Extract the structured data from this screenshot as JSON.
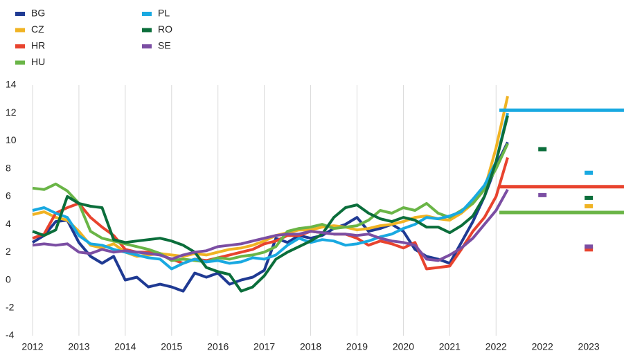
{
  "chart_data": {
    "type": "line",
    "x": [
      2012,
      2012.25,
      2012.5,
      2012.75,
      2013,
      2013.25,
      2013.5,
      2013.75,
      2014,
      2014.25,
      2014.5,
      2014.75,
      2015,
      2015.25,
      2015.5,
      2015.75,
      2016,
      2016.25,
      2016.5,
      2016.75,
      2017,
      2017.25,
      2017.5,
      2017.75,
      2018,
      2018.25,
      2018.5,
      2018.75,
      2019,
      2019.25,
      2019.5,
      2019.75,
      2020,
      2020.25,
      2020.5,
      2020.75,
      2021,
      2021.25,
      2021.5,
      2021.75,
      2022,
      2022.25
    ],
    "xlim": [
      2012,
      2024.76
    ],
    "xticks": [
      2012,
      2013,
      2014,
      2015,
      2016,
      2017,
      2018,
      2019,
      2020,
      2021,
      2022,
      {
        "value": 2023,
        "label": "2022"
      },
      {
        "value": 2024,
        "label": "2023"
      }
    ],
    "ylim": [
      -4,
      14
    ],
    "yticks": [
      -4,
      -2,
      0,
      2,
      4,
      6,
      8,
      10,
      12,
      14
    ],
    "grid": true,
    "legend": "top-left",
    "forecast_x": [
      2023,
      2024
    ],
    "series": [
      {
        "name": "BG",
        "color": "#1f3a93",
        "values": [
          2.7,
          3.2,
          4.2,
          4.3,
          2.7,
          1.7,
          1.2,
          1.7,
          0,
          0.2,
          -0.5,
          -0.3,
          -0.5,
          -0.8,
          0.5,
          0.2,
          0.5,
          -0.3,
          0,
          0.2,
          0.7,
          3,
          2.7,
          3.2,
          3,
          3.2,
          3.7,
          4,
          4.5,
          3.5,
          3.7,
          4,
          3.5,
          2.2,
          1.7,
          1.5,
          1.2,
          2.7,
          4.2,
          6,
          8.2,
          9.9
        ]
      },
      {
        "name": "CZ",
        "color": "#f0b323",
        "values": [
          4.7,
          4.9,
          4.5,
          4.3,
          3.5,
          2.5,
          2.3,
          2.6,
          2.0,
          1.7,
          1.8,
          1.9,
          1.8,
          1.7,
          1.9,
          1.8,
          2.0,
          2.2,
          2.3,
          2.5,
          2.8,
          3.2,
          3.4,
          3.6,
          3.6,
          3.8,
          3.9,
          3.8,
          3.6,
          3.7,
          3.9,
          4.0,
          4.2,
          4.5,
          4.6,
          4.4,
          4.3,
          4.8,
          5.5,
          6.5,
          9.5,
          13.2
        ],
        "forecast": [
          null,
          5.3
        ]
      },
      {
        "name": "HR",
        "color": "#e8432e",
        "values": [
          3.0,
          3.3,
          4.8,
          5.2,
          5.5,
          4.5,
          3.8,
          3.2,
          2.2,
          2.0,
          2.0,
          1.8,
          1.5,
          1.2,
          1.5,
          1.4,
          1.6,
          1.8,
          2.0,
          2.2,
          2.6,
          2.8,
          3.2,
          3.2,
          3.5,
          3.4,
          3.3,
          3.3,
          3.0,
          2.5,
          2.8,
          2.6,
          2.3,
          2.7,
          0.8,
          0.9,
          1.0,
          2.2,
          3.5,
          4.5,
          6.0,
          8.8
        ],
        "reference": 6.7,
        "forecast": [
          null,
          2.2
        ]
      },
      {
        "name": "HU",
        "color": "#6ab547",
        "values": [
          6.6,
          6.5,
          6.9,
          6.4,
          5.5,
          3.5,
          3.0,
          2.8,
          2.6,
          2.4,
          2.2,
          1.9,
          1.4,
          1.5,
          1.4,
          1.3,
          1.6,
          1.5,
          1.7,
          1.8,
          2.0,
          2.4,
          3.5,
          3.7,
          3.8,
          4.0,
          3.7,
          3.8,
          3.9,
          4.3,
          5.0,
          4.8,
          5.2,
          5.0,
          5.5,
          4.8,
          4.5,
          5.0,
          5.5,
          6.5,
          8.0,
          9.8
        ],
        "reference": 4.85
      },
      {
        "name": "PL",
        "color": "#19a9e1",
        "values": [
          5.0,
          5.2,
          4.8,
          4.5,
          3.2,
          2.6,
          2.5,
          2.2,
          2.0,
          1.8,
          1.6,
          1.5,
          0.8,
          1.2,
          1.5,
          1.3,
          1.4,
          1.2,
          1.3,
          1.6,
          1.5,
          1.8,
          2.5,
          3.0,
          2.7,
          2.9,
          2.8,
          2.5,
          2.6,
          2.8,
          3.1,
          3.3,
          3.7,
          4.0,
          4.5,
          4.4,
          4.6,
          4.9,
          5.8,
          6.8,
          8.5,
          12.0
        ],
        "reference": 12.2,
        "forecast": [
          null,
          7.7
        ]
      },
      {
        "name": "RO",
        "color": "#0b6e3b",
        "values": [
          3.5,
          3.2,
          3.6,
          6.0,
          5.5,
          5.3,
          5.2,
          2.9,
          2.7,
          2.8,
          2.9,
          3.0,
          2.8,
          2.5,
          2.0,
          0.9,
          0.6,
          0.4,
          -0.8,
          -0.5,
          0.3,
          1.5,
          2.0,
          2.4,
          2.8,
          3.3,
          4.5,
          5.2,
          5.4,
          4.8,
          4.4,
          4.2,
          4.5,
          4.3,
          3.8,
          3.8,
          3.4,
          3.9,
          4.6,
          6.0,
          8.5,
          11.8
        ],
        "forecast": [
          9.4,
          5.9
        ]
      },
      {
        "name": "SE",
        "color": "#7b4ea3",
        "values": [
          2.5,
          2.6,
          2.5,
          2.6,
          2.0,
          1.9,
          2.2,
          2.0,
          2.1,
          2.0,
          1.9,
          1.8,
          1.5,
          1.8,
          2.0,
          2.1,
          2.4,
          2.5,
          2.6,
          2.8,
          3.0,
          3.2,
          3.3,
          3.3,
          3.5,
          3.4,
          3.3,
          3.3,
          3.2,
          3.3,
          3.0,
          2.8,
          2.7,
          2.5,
          1.5,
          1.4,
          1.8,
          2.3,
          3.0,
          4.0,
          5.0,
          6.5
        ],
        "forecast": [
          6.1,
          2.4
        ]
      }
    ]
  }
}
